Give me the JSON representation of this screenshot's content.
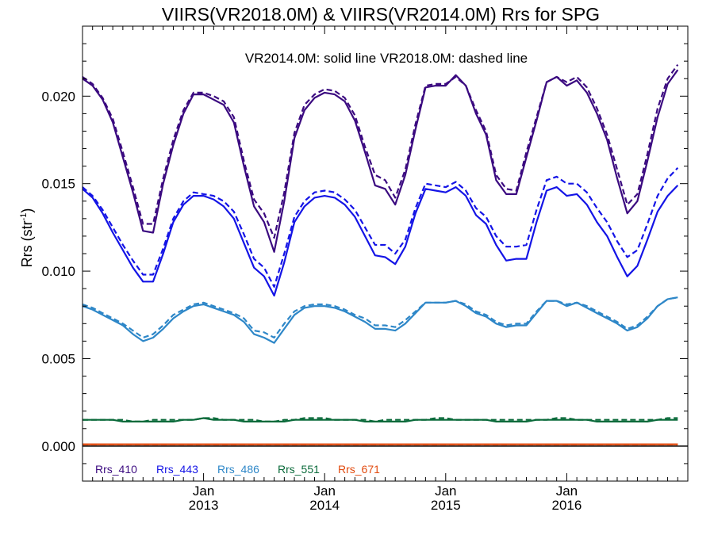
{
  "chart_data": {
    "type": "line",
    "title": "VIIRS(VR2018.0M) & VIIRS(VR2014.0M)  Rrs for SPG",
    "subtitle": "VR2014.0M: solid line   VR2018.0M: dashed line",
    "ylabel_main": "Rrs (str",
    "ylabel_sup": "-1",
    "ylabel_close": ")",
    "xlabel": "",
    "ylim": [
      -0.002,
      0.024
    ],
    "yticks": [
      "0.000",
      "0.005",
      "0.010",
      "0.015",
      "0.020"
    ],
    "x_range": [
      "2012-01",
      "2017-01"
    ],
    "xticks": [
      {
        "line1": "Jan",
        "line2": "2013",
        "date": "2013-01"
      },
      {
        "line1": "Jan",
        "line2": "2014",
        "date": "2014-01"
      },
      {
        "line1": "Jan",
        "line2": "2015",
        "date": "2015-01"
      },
      {
        "line1": "Jan",
        "line2": "2016",
        "date": "2016-01"
      }
    ],
    "grid": false,
    "legend_placement": "bottom-left",
    "months": [
      "2012-01",
      "2012-02",
      "2012-03",
      "2012-04",
      "2012-05",
      "2012-06",
      "2012-07",
      "2012-08",
      "2012-09",
      "2012-10",
      "2012-11",
      "2012-12",
      "2013-01",
      "2013-02",
      "2013-03",
      "2013-04",
      "2013-05",
      "2013-06",
      "2013-07",
      "2013-08",
      "2013-09",
      "2013-10",
      "2013-11",
      "2013-12",
      "2014-01",
      "2014-02",
      "2014-03",
      "2014-04",
      "2014-05",
      "2014-06",
      "2014-07",
      "2014-08",
      "2014-09",
      "2014-10",
      "2014-11",
      "2014-12",
      "2015-01",
      "2015-02",
      "2015-03",
      "2015-04",
      "2015-05",
      "2015-06",
      "2015-07",
      "2015-08",
      "2015-09",
      "2015-10",
      "2015-11",
      "2015-12",
      "2016-01",
      "2016-02",
      "2016-03",
      "2016-04",
      "2016-05",
      "2016-06",
      "2016-07",
      "2016-08",
      "2016-09",
      "2016-10",
      "2016-11",
      "2016-12"
    ],
    "series": [
      {
        "name": "Rrs_410",
        "color": "#3b0a80",
        "solid": [
          0.021,
          0.0206,
          0.0198,
          0.0185,
          0.0165,
          0.0145,
          0.0123,
          0.0122,
          0.015,
          0.0172,
          0.019,
          0.0201,
          0.0201,
          0.0198,
          0.0195,
          0.0185,
          0.016,
          0.0137,
          0.0128,
          0.0111,
          0.014,
          0.0176,
          0.0192,
          0.0199,
          0.0202,
          0.0201,
          0.0197,
          0.0186,
          0.0168,
          0.0149,
          0.0147,
          0.0138,
          0.0155,
          0.0181,
          0.0205,
          0.0206,
          0.0206,
          0.0212,
          0.0206,
          0.019,
          0.0178,
          0.0152,
          0.0144,
          0.0144,
          0.0165,
          0.0186,
          0.0208,
          0.0211,
          0.0206,
          0.0209,
          0.0202,
          0.019,
          0.0175,
          0.0153,
          0.0133,
          0.014,
          0.0163,
          0.0188,
          0.0207,
          0.0215
        ],
        "dashed": [
          0.0211,
          0.0207,
          0.0199,
          0.0187,
          0.0168,
          0.0148,
          0.0127,
          0.0127,
          0.0153,
          0.0175,
          0.0192,
          0.0202,
          0.0202,
          0.02,
          0.0197,
          0.0188,
          0.0163,
          0.0141,
          0.0133,
          0.0119,
          0.0145,
          0.0179,
          0.0195,
          0.0201,
          0.0204,
          0.0203,
          0.0199,
          0.0189,
          0.0171,
          0.0155,
          0.0152,
          0.0142,
          0.0158,
          0.0184,
          0.0206,
          0.0207,
          0.0207,
          0.0211,
          0.0206,
          0.0192,
          0.018,
          0.0155,
          0.0147,
          0.0146,
          0.0168,
          0.0188,
          0.0208,
          0.0211,
          0.0208,
          0.0211,
          0.0205,
          0.0193,
          0.0178,
          0.0158,
          0.0138,
          0.0144,
          0.0167,
          0.0193,
          0.021,
          0.0218
        ]
      },
      {
        "name": "Rrs_443",
        "color": "#1414e6",
        "solid": [
          0.0147,
          0.0142,
          0.0133,
          0.0122,
          0.0112,
          0.0102,
          0.0094,
          0.0094,
          0.011,
          0.0128,
          0.0138,
          0.0143,
          0.0143,
          0.0141,
          0.0137,
          0.013,
          0.0116,
          0.0102,
          0.0097,
          0.0086,
          0.0105,
          0.0128,
          0.0137,
          0.0142,
          0.0143,
          0.0142,
          0.0138,
          0.0131,
          0.012,
          0.0109,
          0.0108,
          0.0104,
          0.0114,
          0.0133,
          0.0147,
          0.0146,
          0.0145,
          0.0148,
          0.0143,
          0.0132,
          0.0127,
          0.0115,
          0.0106,
          0.0107,
          0.0107,
          0.0128,
          0.0146,
          0.0148,
          0.0143,
          0.0144,
          0.0138,
          0.0128,
          0.012,
          0.0108,
          0.0097,
          0.0103,
          0.0118,
          0.0134,
          0.0143,
          0.0149
        ],
        "dashed": [
          0.0148,
          0.0143,
          0.0135,
          0.0125,
          0.0115,
          0.0106,
          0.0098,
          0.0098,
          0.0113,
          0.013,
          0.014,
          0.0145,
          0.0144,
          0.0143,
          0.014,
          0.0134,
          0.0121,
          0.0107,
          0.0102,
          0.0091,
          0.011,
          0.0131,
          0.014,
          0.0145,
          0.0146,
          0.0145,
          0.0141,
          0.0135,
          0.0125,
          0.0115,
          0.0115,
          0.011,
          0.0118,
          0.0136,
          0.015,
          0.0149,
          0.0148,
          0.0151,
          0.0146,
          0.0136,
          0.0131,
          0.012,
          0.0114,
          0.0114,
          0.0115,
          0.0135,
          0.0152,
          0.0154,
          0.015,
          0.015,
          0.0145,
          0.0136,
          0.0128,
          0.0117,
          0.0108,
          0.0112,
          0.0127,
          0.0143,
          0.0153,
          0.0159
        ]
      },
      {
        "name": "Rrs_486",
        "color": "#2e87c8",
        "solid": [
          0.008,
          0.0078,
          0.0075,
          0.0072,
          0.0069,
          0.0064,
          0.006,
          0.0062,
          0.0067,
          0.0073,
          0.0077,
          0.008,
          0.0081,
          0.0079,
          0.0077,
          0.0075,
          0.0071,
          0.0064,
          0.0062,
          0.0059,
          0.0067,
          0.0075,
          0.0079,
          0.008,
          0.008,
          0.0079,
          0.0077,
          0.0074,
          0.0071,
          0.0067,
          0.0067,
          0.0066,
          0.007,
          0.0076,
          0.0082,
          0.0082,
          0.0082,
          0.0083,
          0.008,
          0.0076,
          0.0074,
          0.007,
          0.0068,
          0.0069,
          0.0069,
          0.0076,
          0.0083,
          0.0083,
          0.008,
          0.0082,
          0.0079,
          0.0076,
          0.0073,
          0.007,
          0.0066,
          0.0068,
          0.0073,
          0.008,
          0.0084,
          0.0085
        ],
        "dashed": [
          0.0081,
          0.0079,
          0.0076,
          0.0073,
          0.007,
          0.0066,
          0.0062,
          0.0064,
          0.0069,
          0.0075,
          0.0078,
          0.0081,
          0.0082,
          0.008,
          0.0078,
          0.0076,
          0.0073,
          0.0066,
          0.0065,
          0.0062,
          0.007,
          0.0077,
          0.008,
          0.0081,
          0.0081,
          0.008,
          0.0078,
          0.0075,
          0.0073,
          0.0069,
          0.0069,
          0.0068,
          0.0072,
          0.0077,
          0.0082,
          0.0082,
          0.0082,
          0.0083,
          0.0081,
          0.0077,
          0.0075,
          0.0071,
          0.0069,
          0.007,
          0.007,
          0.0077,
          0.0083,
          0.0083,
          0.0081,
          0.0082,
          0.008,
          0.0077,
          0.0074,
          0.0071,
          0.0067,
          0.0069,
          0.0074,
          0.008,
          0.0084,
          0.0085
        ]
      },
      {
        "name": "Rrs_551",
        "color": "#0a6a3a",
        "solid": [
          0.0015,
          0.0015,
          0.0015,
          0.0015,
          0.0014,
          0.0014,
          0.0014,
          0.0014,
          0.0014,
          0.0014,
          0.0015,
          0.0015,
          0.0016,
          0.0015,
          0.0015,
          0.0015,
          0.0014,
          0.0014,
          0.0014,
          0.0014,
          0.0014,
          0.0015,
          0.0015,
          0.0015,
          0.0015,
          0.0015,
          0.0015,
          0.0015,
          0.0014,
          0.0014,
          0.0014,
          0.0014,
          0.0014,
          0.0015,
          0.0015,
          0.0015,
          0.0015,
          0.0015,
          0.0015,
          0.0015,
          0.0015,
          0.0014,
          0.0014,
          0.0014,
          0.0014,
          0.0015,
          0.0015,
          0.0015,
          0.0015,
          0.0015,
          0.0015,
          0.0014,
          0.0014,
          0.0014,
          0.0014,
          0.0014,
          0.0014,
          0.0015,
          0.0015,
          0.0015
        ],
        "dashed": [
          0.0015,
          0.0015,
          0.0015,
          0.0015,
          0.0015,
          0.0014,
          0.0014,
          0.0015,
          0.0015,
          0.0015,
          0.0015,
          0.0015,
          0.0016,
          0.0016,
          0.0015,
          0.0015,
          0.0015,
          0.0015,
          0.0014,
          0.0014,
          0.0015,
          0.0015,
          0.0016,
          0.0016,
          0.0016,
          0.0015,
          0.0015,
          0.0015,
          0.0015,
          0.0014,
          0.0015,
          0.0015,
          0.0015,
          0.0015,
          0.0015,
          0.0016,
          0.0016,
          0.0015,
          0.0015,
          0.0015,
          0.0015,
          0.0015,
          0.0015,
          0.0015,
          0.0015,
          0.0015,
          0.0015,
          0.0016,
          0.0016,
          0.0015,
          0.0015,
          0.0015,
          0.0015,
          0.0015,
          0.0015,
          0.0015,
          0.0015,
          0.0015,
          0.0016,
          0.0016
        ]
      },
      {
        "name": "Rrs_671",
        "color": "#e24a0e",
        "solid": [
          0.0001,
          0.0001,
          0.0001,
          0.0001,
          0.0001,
          0.0001,
          0.0001,
          0.0001,
          0.0001,
          0.0001,
          0.0001,
          0.0001,
          0.0001,
          0.0001,
          0.0001,
          0.0001,
          0.0001,
          0.0001,
          0.0001,
          0.0001,
          0.0001,
          0.0001,
          0.0001,
          0.0001,
          0.0001,
          0.0001,
          0.0001,
          0.0001,
          0.0001,
          0.0001,
          0.0001,
          0.0001,
          0.0001,
          0.0001,
          0.0001,
          0.0001,
          0.0001,
          0.0001,
          0.0001,
          0.0001,
          0.0001,
          0.0001,
          0.0001,
          0.0001,
          0.0001,
          0.0001,
          0.0001,
          0.0001,
          0.0001,
          0.0001,
          0.0001,
          0.0001,
          0.0001,
          0.0001,
          0.0001,
          0.0001,
          0.0001,
          0.0001,
          0.0001,
          0.0001
        ],
        "dashed": [
          0.0001,
          0.0001,
          0.0001,
          0.0001,
          0.0001,
          0.0001,
          0.0001,
          0.0001,
          0.0001,
          0.0001,
          0.0001,
          0.0001,
          0.0001,
          0.0001,
          0.0001,
          0.0001,
          0.0001,
          0.0001,
          0.0001,
          0.0001,
          0.0001,
          0.0001,
          0.0001,
          0.0001,
          0.0001,
          0.0001,
          0.0001,
          0.0001,
          0.0001,
          0.0001,
          0.0001,
          0.0001,
          0.0001,
          0.0001,
          0.0001,
          0.0001,
          0.0001,
          0.0001,
          0.0001,
          0.0001,
          0.0001,
          0.0001,
          0.0001,
          0.0001,
          0.0001,
          0.0001,
          0.0001,
          0.0001,
          0.0001,
          0.0001,
          0.0001,
          0.0001,
          0.0001,
          0.0001,
          0.0001,
          0.0001,
          0.0001,
          0.0001,
          0.0001,
          0.0001
        ]
      }
    ]
  }
}
